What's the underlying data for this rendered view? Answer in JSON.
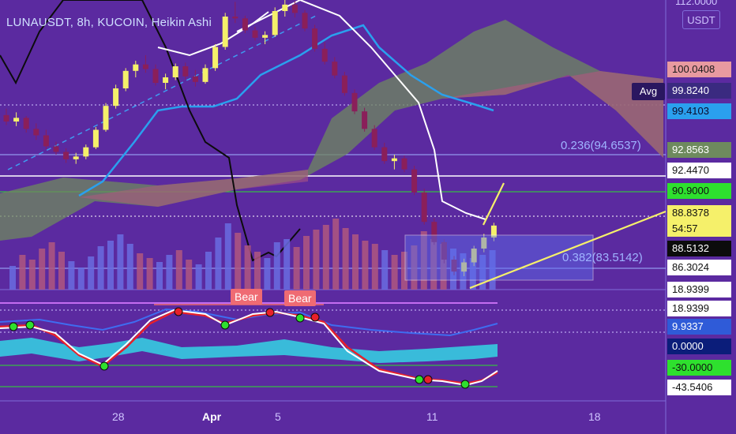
{
  "header": {
    "title": "LUNAUSDT, 8h, KUCOIN, Heikin Ashi"
  },
  "axis": {
    "top_value": "112.0000",
    "currency": "USDT",
    "avg_label": "Avg"
  },
  "price_labels": [
    {
      "text": "100.0408",
      "bg": "#e89aa0",
      "fg": "#1a1a1a"
    },
    {
      "text": "99.8240",
      "bg": "#3a2a80",
      "fg": "#ffffff"
    },
    {
      "text": "99.4103",
      "bg": "#2aa0ee",
      "fg": "#0b0b2a"
    },
    {
      "text": "92.8563",
      "bg": "#6e8a5e",
      "fg": "#ffffff"
    },
    {
      "text": "92.4470",
      "bg": "#ffffff",
      "fg": "#111111"
    },
    {
      "text": "90.9000",
      "bg": "#2ee02e",
      "fg": "#111111"
    },
    {
      "text": "88.8378",
      "bg": "#f5f06a",
      "fg": "#111111"
    },
    {
      "text": "54:57",
      "bg": "#f5f06a",
      "fg": "#111111"
    },
    {
      "text": "88.5132",
      "bg": "#0c0c0c",
      "fg": "#ffffff"
    },
    {
      "text": "86.3024",
      "bg": "#ffffff",
      "fg": "#111111"
    },
    {
      "text": "18.9399",
      "bg": "#ffffff",
      "fg": "#111111"
    },
    {
      "text": "18.9399",
      "bg": "#ffffff",
      "fg": "#111111"
    },
    {
      "text": "9.9337",
      "bg": "#2f5bd8",
      "fg": "#ffffff"
    },
    {
      "text": "0.0000",
      "bg": "#0b1d7a",
      "fg": "#ffffff"
    },
    {
      "text": "-30.0000",
      "bg": "#2ee02e",
      "fg": "#111111"
    },
    {
      "text": "-43.5406",
      "bg": "#ffffff",
      "fg": "#111111"
    }
  ],
  "fib": {
    "f236": "0.236(94.6537)",
    "f382": "0.382(83.5142)"
  },
  "signals": {
    "bear1": "Bear",
    "bear2": "Bear"
  },
  "x_axis": {
    "t28": "28",
    "apr": "Apr",
    "t5": "5",
    "t11": "11",
    "t18": "18"
  },
  "colors": {
    "background": "#5b2aa0",
    "candle_up": "#f5f06a",
    "candle_down": "#8a1f5a",
    "cloud_green": "#6e8a5e",
    "cloud_red": "#b0577f",
    "baseline": "#2aa0ee",
    "volume_up": "#6a6ce0",
    "volume_down": "#b0577f"
  },
  "candles": [
    [
      100.5,
      101.2,
      99.4,
      99.8
    ],
    [
      99.8,
      100.8,
      99.3,
      100.2
    ],
    [
      100.2,
      100.4,
      98.6,
      99.0
    ],
    [
      99.0,
      99.6,
      97.8,
      98.3
    ],
    [
      98.3,
      98.9,
      96.8,
      97.1
    ],
    [
      97.1,
      97.6,
      96.2,
      96.5
    ],
    [
      96.5,
      96.9,
      95.3,
      95.7
    ],
    [
      95.7,
      96.4,
      95.2,
      96.0
    ],
    [
      96.0,
      97.3,
      95.7,
      97.0
    ],
    [
      97.0,
      99.2,
      96.8,
      98.9
    ],
    [
      98.9,
      101.8,
      98.7,
      101.5
    ],
    [
      101.5,
      103.8,
      101.2,
      103.4
    ],
    [
      103.4,
      105.6,
      103.1,
      105.3
    ],
    [
      105.3,
      106.4,
      104.6,
      106.0
    ],
    [
      106.0,
      107.0,
      105.1,
      105.5
    ],
    [
      105.5,
      106.0,
      103.7,
      104.0
    ],
    [
      104.0,
      105.0,
      103.3,
      104.6
    ],
    [
      104.6,
      106.1,
      104.3,
      105.8
    ],
    [
      105.8,
      106.2,
      104.4,
      104.7
    ],
    [
      104.7,
      105.4,
      103.6,
      104.1
    ],
    [
      104.1,
      106.0,
      103.9,
      105.6
    ],
    [
      105.6,
      108.2,
      105.3,
      107.9
    ],
    [
      107.9,
      111.6,
      107.6,
      111.2
    ],
    [
      111.2,
      112.8,
      110.5,
      111.0
    ],
    [
      111.0,
      111.3,
      109.4,
      109.7
    ],
    [
      109.7,
      110.1,
      108.6,
      108.9
    ],
    [
      108.9,
      109.6,
      108.2,
      109.2
    ],
    [
      109.2,
      112.2,
      109.0,
      111.8
    ],
    [
      111.8,
      113.4,
      111.2,
      112.5
    ],
    [
      112.5,
      112.9,
      111.1,
      111.6
    ],
    [
      111.6,
      111.9,
      109.6,
      109.9
    ],
    [
      109.9,
      110.3,
      107.4,
      107.7
    ],
    [
      107.7,
      108.4,
      106.0,
      106.3
    ],
    [
      106.3,
      106.8,
      104.5,
      104.8
    ],
    [
      104.8,
      105.2,
      102.6,
      102.9
    ],
    [
      102.9,
      103.3,
      100.6,
      100.9
    ],
    [
      100.9,
      101.3,
      98.7,
      99.0
    ],
    [
      99.0,
      99.4,
      96.7,
      97.0
    ],
    [
      97.0,
      97.5,
      95.2,
      95.5
    ],
    [
      95.5,
      96.2,
      94.6,
      95.8
    ],
    [
      95.8,
      96.1,
      94.3,
      94.6
    ],
    [
      94.6,
      95.0,
      91.8,
      92.1
    ],
    [
      92.1,
      92.5,
      88.6,
      88.9
    ],
    [
      88.9,
      89.3,
      86.4,
      86.7
    ],
    [
      86.7,
      87.0,
      84.4,
      84.8
    ],
    [
      84.8,
      85.2,
      83.1,
      83.5
    ],
    [
      83.5,
      84.9,
      83.0,
      84.5
    ],
    [
      84.5,
      86.3,
      84.1,
      86.0
    ],
    [
      86.0,
      87.6,
      85.6,
      87.2
    ],
    [
      87.2,
      88.8,
      86.8,
      88.5
    ]
  ],
  "volumes": [
    [
      30,
      1
    ],
    [
      44,
      0
    ],
    [
      38,
      0
    ],
    [
      52,
      0
    ],
    [
      60,
      0
    ],
    [
      48,
      0
    ],
    [
      36,
      1
    ],
    [
      28,
      1
    ],
    [
      42,
      1
    ],
    [
      55,
      1
    ],
    [
      62,
      1
    ],
    [
      70,
      1
    ],
    [
      58,
      1
    ],
    [
      46,
      0
    ],
    [
      40,
      0
    ],
    [
      35,
      1
    ],
    [
      44,
      1
    ],
    [
      50,
      0
    ],
    [
      38,
      0
    ],
    [
      32,
      1
    ],
    [
      48,
      1
    ],
    [
      66,
      1
    ],
    [
      84,
      1
    ],
    [
      72,
      0
    ],
    [
      56,
      0
    ],
    [
      48,
      0
    ],
    [
      40,
      1
    ],
    [
      60,
      1
    ],
    [
      64,
      1
    ],
    [
      54,
      0
    ],
    [
      68,
      0
    ],
    [
      76,
      0
    ],
    [
      82,
      0
    ],
    [
      90,
      0
    ],
    [
      78,
      0
    ],
    [
      70,
      0
    ],
    [
      62,
      0
    ],
    [
      58,
      0
    ],
    [
      50,
      1
    ],
    [
      44,
      0
    ],
    [
      48,
      0
    ],
    [
      56,
      0
    ],
    [
      74,
      0
    ],
    [
      64,
      0
    ],
    [
      58,
      0
    ],
    [
      52,
      1
    ],
    [
      46,
      1
    ],
    [
      40,
      1
    ],
    [
      44,
      1
    ],
    [
      50,
      1
    ]
  ]
}
